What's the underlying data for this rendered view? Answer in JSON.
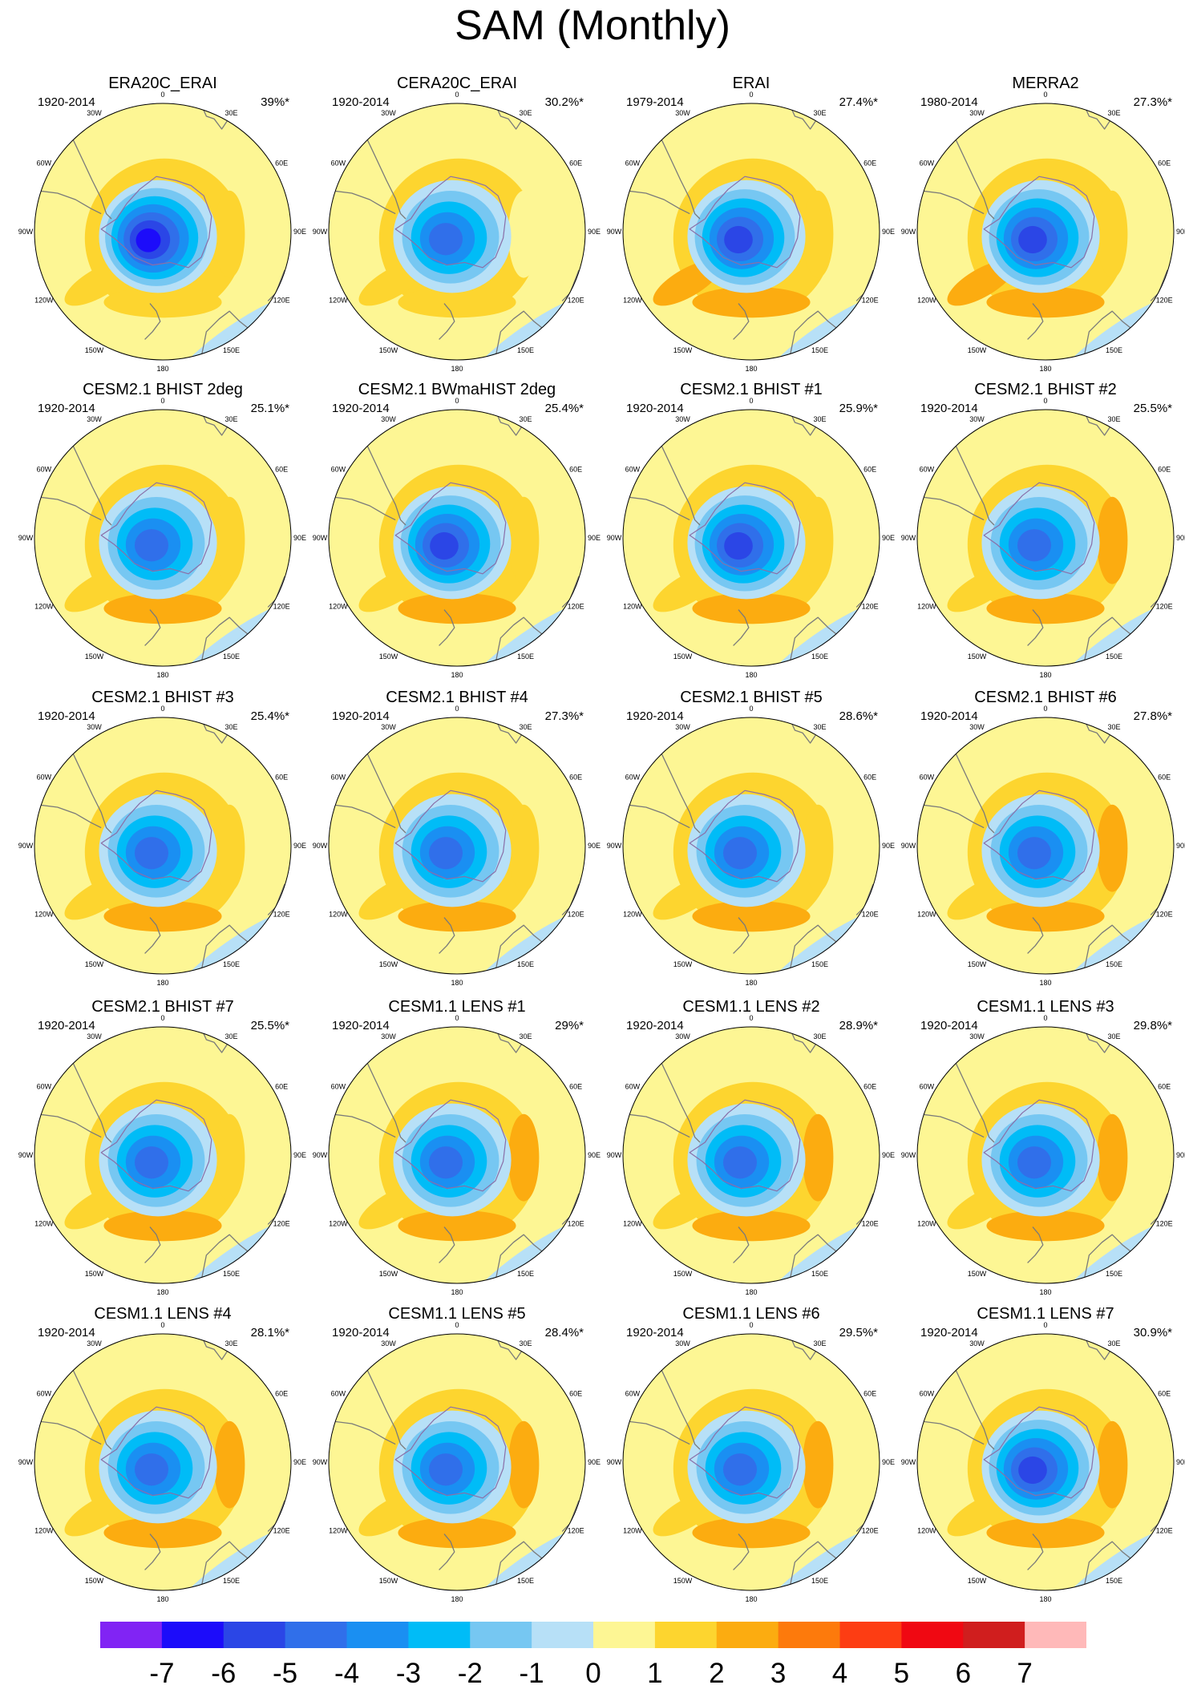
{
  "title": "SAM (Monthly)",
  "colors": {
    "bins": [
      "#8124f4",
      "#1c0cfa",
      "#2b46e6",
      "#306fea",
      "#1a8ff2",
      "#00bcf7",
      "#76c7f2",
      "#b7e0f7",
      "#fdf694",
      "#fdd52f",
      "#fcac10",
      "#fd7a0c",
      "#fd3d13",
      "#f00812",
      "#d01e1e",
      "#ffb9b9"
    ],
    "coast": "#7a7a7a",
    "ice_line": "#8a6fa8"
  },
  "chart_data": {
    "type": "contour-map",
    "projection": "south-polar-stereographic",
    "variable": "SAM regression pattern (monthly)",
    "contour_levels": [
      -7,
      -6,
      -5,
      -4,
      -3,
      -2,
      -1,
      0,
      1,
      2,
      3,
      4,
      5,
      6,
      7
    ],
    "colorbar_labels": [
      "-7",
      "-6",
      "-5",
      "-4",
      "-3",
      "-2",
      "-1",
      "0",
      "1",
      "2",
      "3",
      "4",
      "5",
      "6",
      "7"
    ],
    "longitude_labels": [
      "0",
      "30E",
      "60E",
      "90E",
      "120E",
      "150E",
      "180",
      "150W",
      "120W",
      "90W",
      "60W",
      "30W"
    ],
    "panels": [
      {
        "name": "ERA20C_ERAI",
        "years": "1920-2014",
        "variance": "39%*",
        "center_min": -6.6,
        "annulus": 1.6,
        "lobes": [
          1.6,
          1.1,
          1.3
        ]
      },
      {
        "name": "CERA20C_ERAI",
        "years": "1920-2014",
        "variance": "30.2%*",
        "center_min": -5.3,
        "annulus": 1.4,
        "lobes": [
          1.0,
          0.9,
          1.1
        ]
      },
      {
        "name": "ERAI",
        "years": "1979-2014",
        "variance": "27.4%*",
        "center_min": -5.6,
        "annulus": 1.5,
        "lobes": [
          2.1,
          1.8,
          2.0
        ]
      },
      {
        "name": "MERRA2",
        "years": "1980-2014",
        "variance": "27.3%*",
        "center_min": -5.9,
        "annulus": 1.5,
        "lobes": [
          2.0,
          1.7,
          2.2
        ]
      },
      {
        "name": "CESM2.1 BHIST 2deg",
        "years": "1920-2014",
        "variance": "25.1%*",
        "center_min": -5.4,
        "annulus": 1.7,
        "lobes": [
          2.2,
          1.2,
          1.6
        ]
      },
      {
        "name": "CESM2.1 BWmaHIST 2deg",
        "years": "1920-2014",
        "variance": "25.4%*",
        "center_min": -6.1,
        "annulus": 1.7,
        "lobes": [
          2.2,
          1.2,
          1.5
        ]
      },
      {
        "name": "CESM2.1 BHIST #1",
        "years": "1920-2014",
        "variance": "25.9%*",
        "center_min": -5.5,
        "annulus": 1.7,
        "lobes": [
          2.1,
          1.3,
          1.7
        ]
      },
      {
        "name": "CESM2.1 BHIST #2",
        "years": "1920-2014",
        "variance": "25.5%*",
        "center_min": -5.4,
        "annulus": 1.7,
        "lobes": [
          2.2,
          2.0,
          1.6
        ]
      },
      {
        "name": "CESM2.1 BHIST #3",
        "years": "1920-2014",
        "variance": "25.4%*",
        "center_min": -5.3,
        "annulus": 1.7,
        "lobes": [
          2.1,
          1.9,
          1.6
        ]
      },
      {
        "name": "CESM2.1 BHIST #4",
        "years": "1920-2014",
        "variance": "27.3%*",
        "center_min": -5.3,
        "annulus": 1.7,
        "lobes": [
          2.2,
          1.9,
          1.6
        ]
      },
      {
        "name": "CESM2.1 BHIST #5",
        "years": "1920-2014",
        "variance": "28.6%*",
        "center_min": -5.4,
        "annulus": 1.7,
        "lobes": [
          2.1,
          1.8,
          1.6
        ]
      },
      {
        "name": "CESM2.1 BHIST #6",
        "years": "1920-2014",
        "variance": "27.8%*",
        "center_min": -5.4,
        "annulus": 1.7,
        "lobes": [
          2.3,
          2.0,
          1.8
        ]
      },
      {
        "name": "CESM2.1 BHIST #7",
        "years": "1920-2014",
        "variance": "25.5%*",
        "center_min": -5.3,
        "annulus": 1.7,
        "lobes": [
          2.2,
          1.9,
          1.6
        ]
      },
      {
        "name": "CESM1.1 LENS #1",
        "years": "1920-2014",
        "variance": "29%*",
        "center_min": -5.2,
        "annulus": 1.3,
        "lobes": [
          2.1,
          2.1,
          1.6
        ]
      },
      {
        "name": "CESM1.1 LENS #2",
        "years": "1920-2014",
        "variance": "28.9%*",
        "center_min": -5.2,
        "annulus": 1.3,
        "lobes": [
          2.0,
          2.1,
          1.6
        ]
      },
      {
        "name": "CESM1.1 LENS #3",
        "years": "1920-2014",
        "variance": "29.8%*",
        "center_min": -5.1,
        "annulus": 1.3,
        "lobes": [
          2.0,
          2.1,
          1.6
        ]
      },
      {
        "name": "CESM1.1 LENS #4",
        "years": "1920-2014",
        "variance": "28.1%*",
        "center_min": -5.2,
        "annulus": 1.2,
        "lobes": [
          2.0,
          2.0,
          1.6
        ]
      },
      {
        "name": "CESM1.1 LENS #5",
        "years": "1920-2014",
        "variance": "28.4%*",
        "center_min": -5.2,
        "annulus": 1.2,
        "lobes": [
          2.0,
          2.0,
          1.6
        ]
      },
      {
        "name": "CESM1.1 LENS #6",
        "years": "1920-2014",
        "variance": "29.5%*",
        "center_min": -5.2,
        "annulus": 1.2,
        "lobes": [
          2.0,
          2.1,
          1.6
        ]
      },
      {
        "name": "CESM1.1 LENS #7",
        "years": "1920-2014",
        "variance": "30.9%*",
        "center_min": -5.5,
        "annulus": 1.2,
        "lobes": [
          2.0,
          2.1,
          1.6
        ]
      }
    ]
  }
}
